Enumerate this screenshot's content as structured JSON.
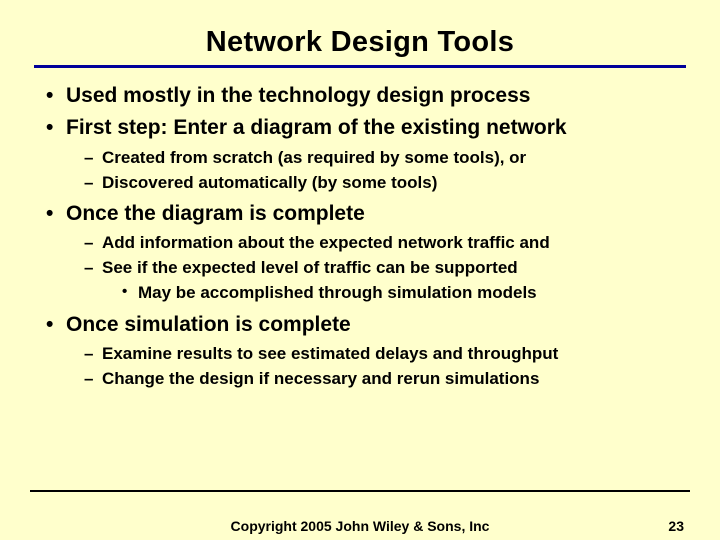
{
  "slide": {
    "title": "Network Design Tools",
    "background_color": "#ffffcc",
    "title_underline_color": "#000099",
    "text_color": "#000000",
    "title_fontsize": 29,
    "lvl1_fontsize": 21,
    "lvl2_fontsize": 17,
    "lvl3_fontsize": 17,
    "footer_fontsize": 14,
    "bullets": {
      "b1": "Used mostly in the technology design process",
      "b2": "First step: Enter a diagram of the existing network",
      "b2_1": "Created from scratch (as required by some tools), or",
      "b2_2": "Discovered automatically (by some tools)",
      "b3": "Once the diagram is complete",
      "b3_1": "Add information about the expected network traffic and",
      "b3_2": "See if the expected level of traffic can be supported",
      "b3_2_1": "May be accomplished through simulation models",
      "b4": "Once simulation is complete",
      "b4_1": "Examine results to see estimated delays and throughput",
      "b4_2": "Change the design if necessary and rerun simulations"
    },
    "footer_text": "Copyright 2005 John Wiley & Sons, Inc",
    "page_number": "23"
  }
}
